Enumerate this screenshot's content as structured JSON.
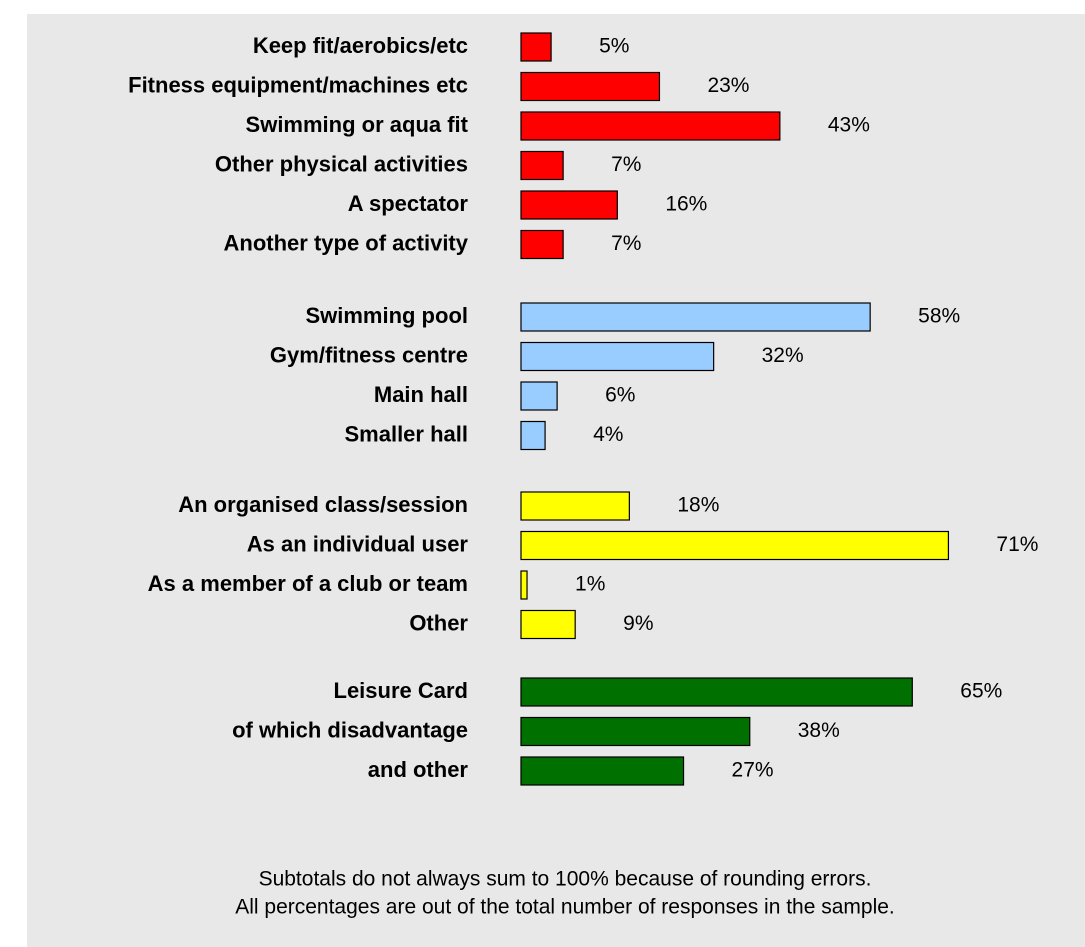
{
  "chart_data": {
    "type": "bar",
    "orientation": "horizontal",
    "series": [
      {
        "color": "#ff0000",
        "categories": [
          "Keep fit/aerobics/etc",
          "Fitness equipment/machines etc",
          "Swimming or aqua fit",
          "Other physical activities",
          "A spectator",
          "Another type of activity"
        ],
        "values": [
          5,
          23,
          43,
          7,
          16,
          7
        ],
        "value_labels": [
          "5%",
          "23%",
          "43%",
          "7%",
          "16%",
          "7%"
        ]
      },
      {
        "color": "#99ccff",
        "categories": [
          "Swimming pool",
          "Gym/fitness centre",
          "Main hall",
          "Smaller hall"
        ],
        "values": [
          58,
          32,
          6,
          4
        ],
        "value_labels": [
          "58%",
          "32%",
          "6%",
          "4%"
        ]
      },
      {
        "color": "#ffff00",
        "categories": [
          "An organised class/session",
          "As an individual user",
          "As a member of a club or team",
          "Other"
        ],
        "values": [
          18,
          71,
          1,
          9
        ],
        "value_labels": [
          "18%",
          "71%",
          "1%",
          "9%"
        ]
      },
      {
        "color": "#007000",
        "categories": [
          "Leisure Card",
          "of which disadvantage",
          "and other"
        ],
        "values": [
          65,
          38,
          27
        ],
        "value_labels": [
          "65%",
          "38%",
          "27%"
        ]
      }
    ],
    "notes": [
      "Subtotals do not always sum to 100% because of rounding errors.",
      "All percentages are out of the total number of responses in the sample."
    ]
  }
}
